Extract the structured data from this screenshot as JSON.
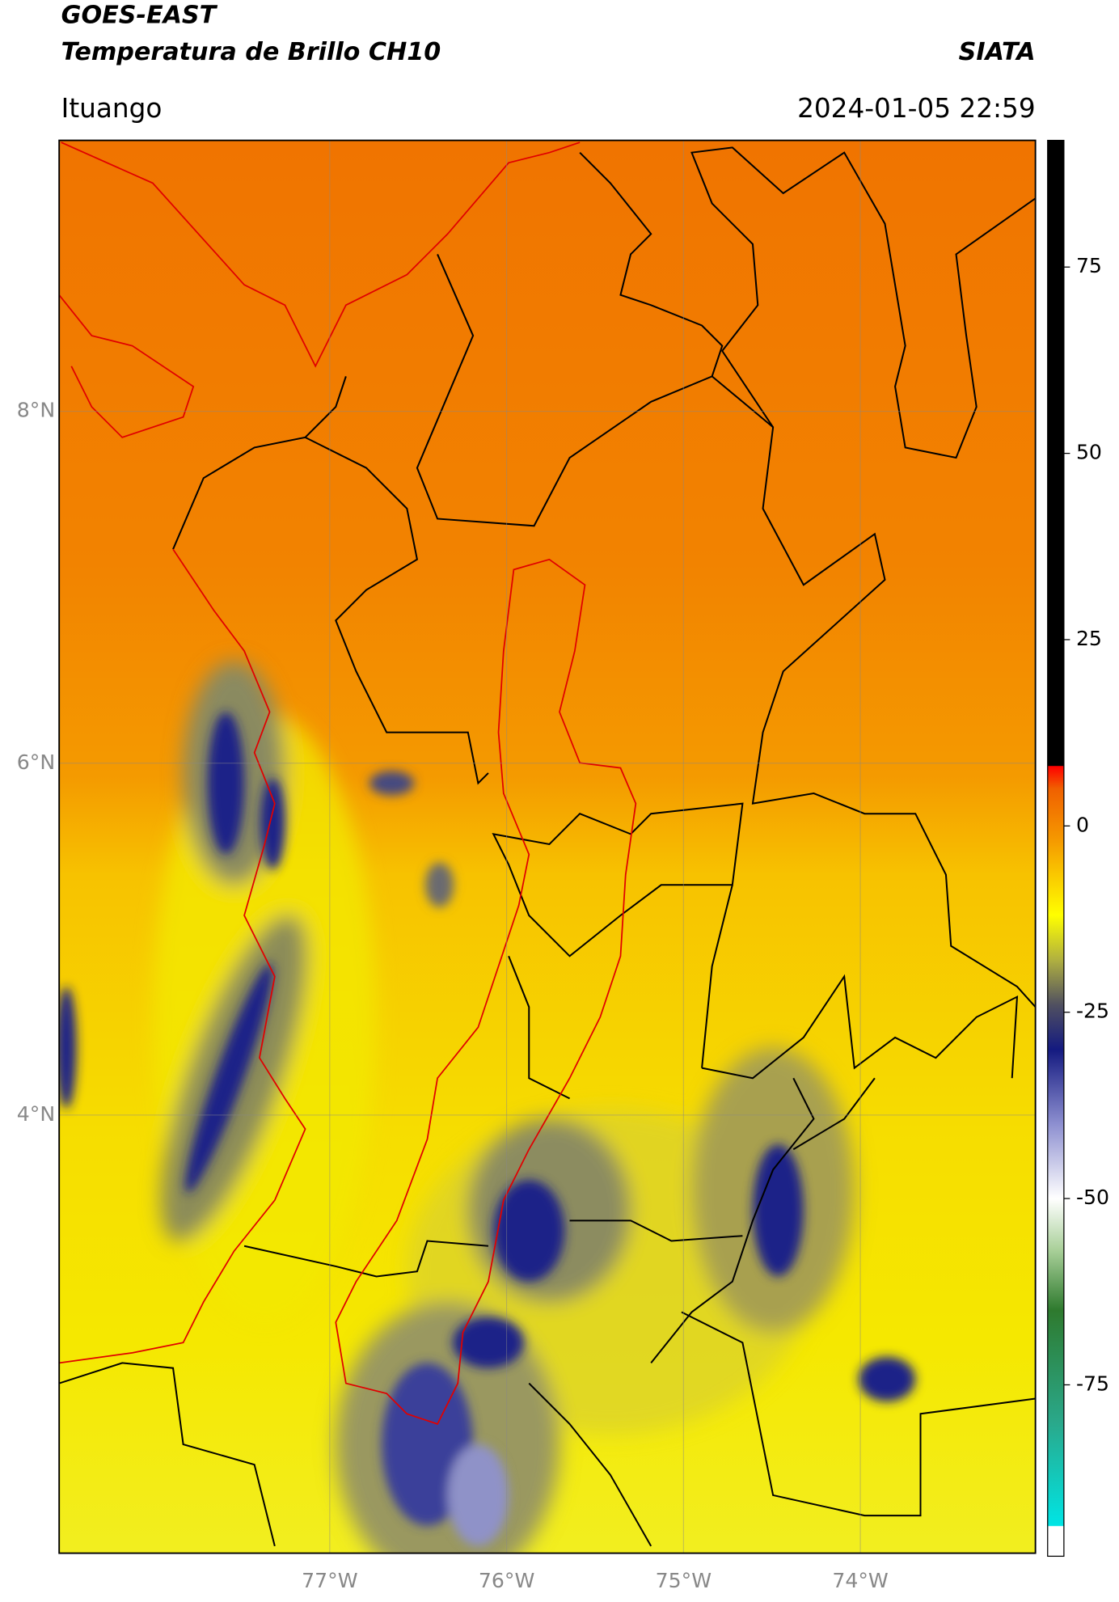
{
  "header": {
    "title_line1": "GOES-EAST",
    "title_line2": "Temperatura de Brillo CH10",
    "brand": "SIATA",
    "location": "Ituango",
    "datetime": "2024-01-05 22:59"
  },
  "map": {
    "xlim": [
      -78.53,
      -73.01
    ],
    "ylim": [
      1.51,
      9.54
    ],
    "xticks": [
      {
        "value": -77,
        "label": "77°W"
      },
      {
        "value": -76,
        "label": "76°W"
      },
      {
        "value": -75,
        "label": "75°W"
      },
      {
        "value": -74,
        "label": "74°W"
      }
    ],
    "yticks": [
      {
        "value": 8,
        "label": "8°N"
      },
      {
        "value": 6,
        "label": "6°N"
      },
      {
        "value": 4,
        "label": "4°N"
      }
    ],
    "grid": true
  },
  "colorbar": {
    "lim": [
      -98,
      92
    ],
    "ticks": [
      75,
      50,
      25,
      0,
      -25,
      -50,
      -75
    ],
    "stops": [
      {
        "value": -98,
        "color": "#ffffff"
      },
      {
        "value": -94,
        "color": "#ffffff"
      },
      {
        "value": -93.9,
        "color": "#00e5e5"
      },
      {
        "value": -80,
        "color": "#2aa88a"
      },
      {
        "value": -65,
        "color": "#2e7a2e"
      },
      {
        "value": -57,
        "color": "#a8cf98"
      },
      {
        "value": -50,
        "color": "#ffffff"
      },
      {
        "value": -40,
        "color": "#8d8fd0"
      },
      {
        "value": -30,
        "color": "#141a80"
      },
      {
        "value": -24,
        "color": "#505060"
      },
      {
        "value": -18,
        "color": "#b0b040"
      },
      {
        "value": -12,
        "color": "#ffff00"
      },
      {
        "value": -2,
        "color": "#f59a00"
      },
      {
        "value": 5,
        "color": "#f06000"
      },
      {
        "value": 8,
        "color": "#ff0000"
      },
      {
        "value": 8.1,
        "color": "#000000"
      },
      {
        "value": 92,
        "color": "#000000"
      }
    ]
  }
}
